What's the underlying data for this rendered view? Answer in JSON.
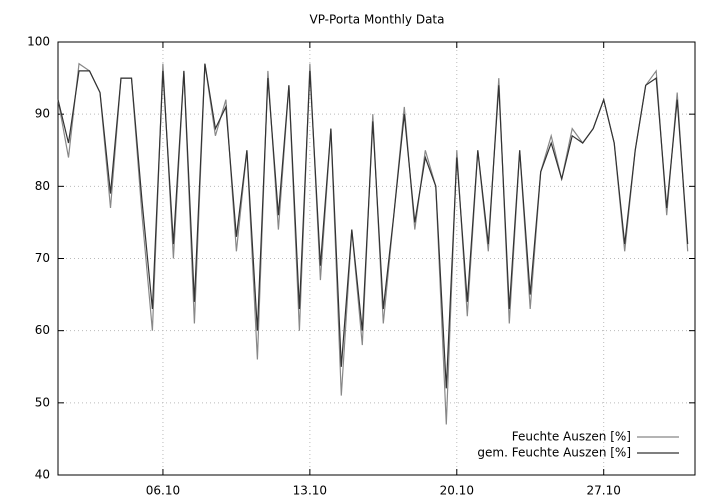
{
  "chart_data": {
    "type": "line",
    "title": "VP-Porta Monthly Data",
    "x": [
      1,
      1.5,
      2,
      2.5,
      3,
      3.5,
      4,
      4.5,
      5,
      5.5,
      6,
      6.5,
      7,
      7.5,
      8,
      8.5,
      9,
      9.5,
      10,
      10.5,
      11,
      11.5,
      12,
      12.5,
      13,
      13.5,
      14,
      14.5,
      15,
      15.5,
      16,
      16.5,
      17,
      17.5,
      18,
      18.5,
      19,
      19.5,
      20,
      20.5,
      21,
      21.5,
      22,
      22.5,
      23,
      23.5,
      24,
      24.5,
      25,
      25.5,
      26,
      26.5,
      27,
      27.5,
      28,
      28.5,
      29,
      29.5,
      30,
      30.5,
      31
    ],
    "series": [
      {
        "name": "Feuchte Auszen [%]",
        "color": "#888888",
        "values": [
          92,
          84,
          97,
          96,
          93,
          77,
          95,
          95,
          76,
          60,
          97,
          70,
          96,
          61,
          97,
          87,
          92,
          71,
          85,
          56,
          96,
          74,
          94,
          60,
          97,
          67,
          88,
          51,
          74,
          58,
          90,
          61,
          76,
          91,
          74,
          85,
          80,
          47,
          85,
          62,
          85,
          71,
          95,
          61,
          85,
          63,
          82,
          87,
          81,
          88,
          86,
          88,
          92,
          86,
          71,
          85,
          94,
          96,
          76,
          93,
          71
        ]
      },
      {
        "name": "gem. Feuchte Auszen [%]",
        "color": "#333333",
        "values": [
          92,
          86,
          96,
          96,
          93,
          79,
          95,
          95,
          78,
          63,
          96,
          72,
          96,
          64,
          97,
          88,
          91,
          73,
          85,
          60,
          95,
          76,
          94,
          63,
          96,
          69,
          88,
          55,
          74,
          60,
          89,
          63,
          76,
          90,
          75,
          84,
          80,
          52,
          84,
          64,
          85,
          72,
          94,
          63,
          85,
          65,
          82,
          86,
          81,
          87,
          86,
          88,
          92,
          86,
          72,
          85,
          94,
          95,
          77,
          92,
          72
        ]
      }
    ],
    "xlim": [
      1,
      31.35
    ],
    "xticks": [
      {
        "value": 6,
        "label": "06.10"
      },
      {
        "value": 13,
        "label": "13.10"
      },
      {
        "value": 20,
        "label": "20.10"
      },
      {
        "value": 27,
        "label": "27.10"
      }
    ],
    "ylim": [
      40,
      100
    ],
    "yticks": [
      40,
      50,
      60,
      70,
      80,
      90,
      100
    ],
    "grid": true,
    "legend": "bottom-right"
  }
}
